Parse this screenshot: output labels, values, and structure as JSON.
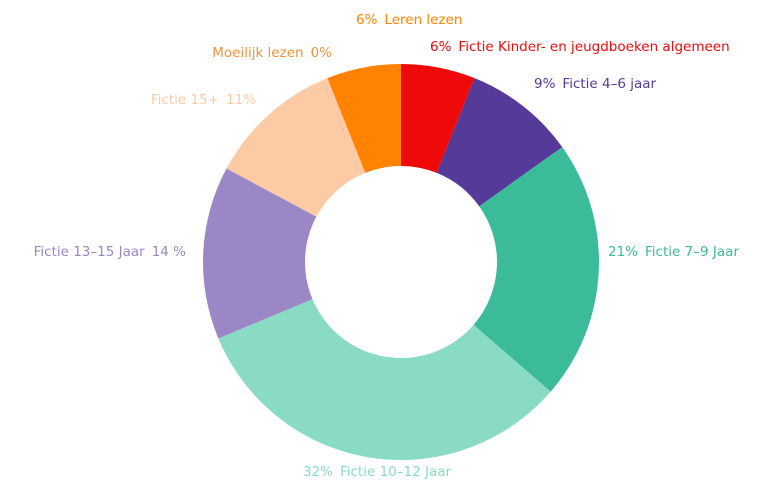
{
  "chart_data": {
    "type": "donut",
    "categories": [
      "Fictie Kinder- en jeugdboeken algemeen",
      "Fictie 4–6 jaar",
      "Fictie 7–9 Jaar",
      "Fictie 10–12 Jaar",
      "Fictie 13–15 Jaar",
      "Fictie 15+",
      "Moeilijk lezen",
      "Leren lezen"
    ],
    "values": [
      6,
      9,
      21,
      32,
      14,
      11,
      0,
      6
    ],
    "value_labels": [
      "6%",
      "9%",
      "21%",
      "32%",
      "14 %",
      "11%",
      "0%",
      "6%"
    ],
    "colors": [
      "#ee0a0a",
      "#553a9a",
      "#3bbb9a",
      "#8adbc4",
      "#9b87c6",
      "#fccba6",
      "#f5903a",
      "#ff8200"
    ]
  }
}
